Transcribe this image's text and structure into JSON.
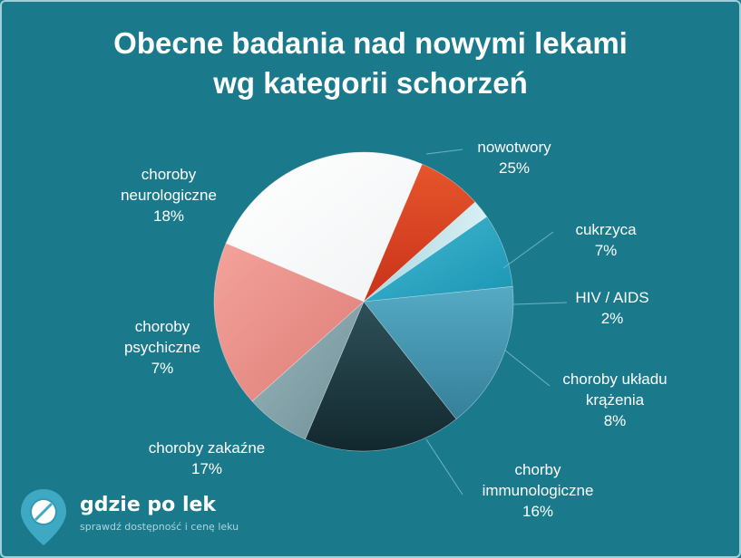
{
  "title_line1": "Obecne badania nad nowymi lekami",
  "title_line2": "wg kategorii schorzeń",
  "chart_data": {
    "type": "pie",
    "slices": [
      {
        "lines": [
          "nowotwory",
          "25%"
        ],
        "value": 25,
        "color": "#ffffff"
      },
      {
        "lines": [
          "cukrzyca",
          "7%"
        ],
        "value": 7,
        "color": "#d63b1d"
      },
      {
        "lines": [
          "HIV / AIDS",
          "2%"
        ],
        "value": 2,
        "color": "#bfe3ea"
      },
      {
        "lines": [
          "choroby układu",
          "krążenia",
          "8%"
        ],
        "value": 8,
        "color": "#28a6c3"
      },
      {
        "lines": [
          "chorby",
          "immunologiczne",
          "16%"
        ],
        "value": 16,
        "color": "#3f9cb8"
      },
      {
        "lines": [
          "choroby zakaźne",
          "17%"
        ],
        "value": 17,
        "color": "#1c3c44"
      },
      {
        "lines": [
          "choroby",
          "psychiczne",
          "7%"
        ],
        "value": 7,
        "color": "#8aa9b0"
      },
      {
        "lines": [
          "choroby",
          "neurologiczne",
          "18%"
        ],
        "value": 18,
        "color": "#ea8e88"
      }
    ]
  },
  "brand": {
    "name": "gdzie po lek",
    "tagline": "sprawdź dostępność i cenę leku",
    "icon": "pill-marker-icon"
  }
}
